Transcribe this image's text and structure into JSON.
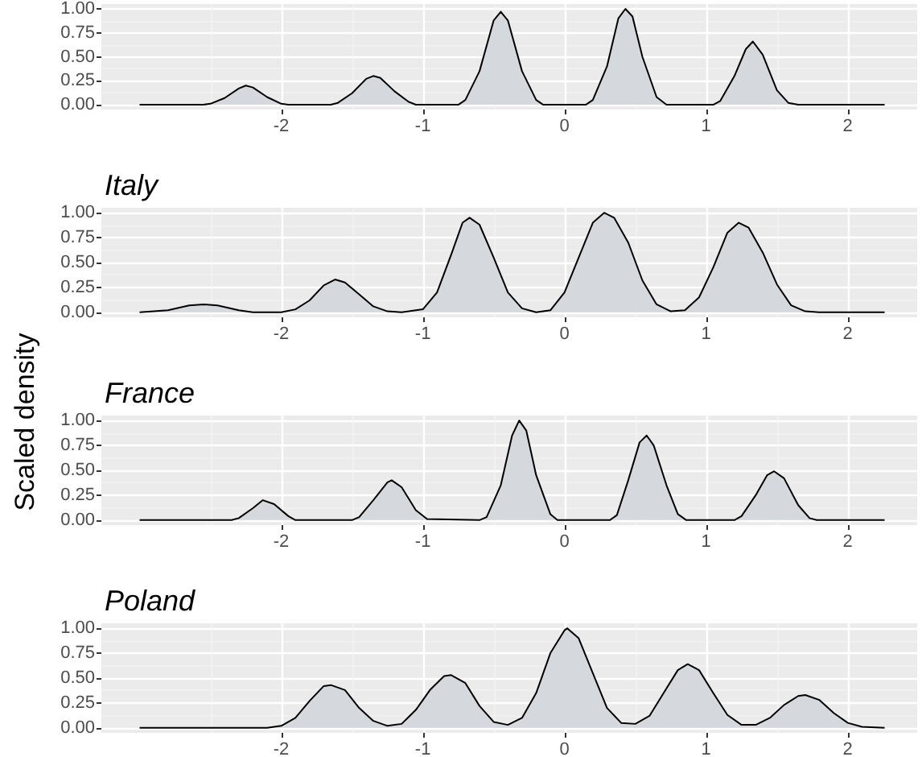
{
  "chart_data": [
    {
      "type": "area",
      "x": [
        -3.0,
        -2.55,
        -2.5,
        -2.4,
        -2.3,
        -2.25,
        -2.2,
        -2.1,
        -2.0,
        -1.95,
        -1.65,
        -1.6,
        -1.5,
        -1.4,
        -1.35,
        -1.3,
        -1.2,
        -1.1,
        -1.05,
        -0.75,
        -0.7,
        -0.6,
        -0.5,
        -0.45,
        -0.4,
        -0.3,
        -0.2,
        -0.15,
        0.15,
        0.2,
        0.3,
        0.38,
        0.43,
        0.48,
        0.55,
        0.65,
        0.72,
        1.05,
        1.1,
        1.2,
        1.28,
        1.33,
        1.4,
        1.5,
        1.58,
        1.65,
        2.26
      ],
      "series": [
        {
          "color": "#d5d8dc",
          "values": [
            0,
            0,
            0.01,
            0.07,
            0.17,
            0.2,
            0.18,
            0.08,
            0.01,
            0,
            0,
            0.02,
            0.12,
            0.27,
            0.3,
            0.28,
            0.14,
            0.03,
            0,
            0,
            0.05,
            0.35,
            0.88,
            0.97,
            0.88,
            0.35,
            0.05,
            0,
            0,
            0.05,
            0.4,
            0.9,
            1.0,
            0.92,
            0.5,
            0.08,
            0,
            0,
            0.04,
            0.3,
            0.58,
            0.66,
            0.52,
            0.15,
            0.02,
            0,
            0
          ]
        }
      ],
      "xlim": [
        -3.27,
        2.49
      ],
      "xticks": [
        -2,
        -1,
        0,
        1,
        2
      ],
      "ylim": [
        -0.05,
        1.05
      ],
      "yticks": [
        {
          "value": 0,
          "label": "0.00"
        },
        {
          "value": 0.25,
          "label": "0.25"
        },
        {
          "value": 0.5,
          "label": "0.50"
        },
        {
          "value": 0.75,
          "label": "0.75"
        },
        {
          "value": 1,
          "label": "1.00"
        }
      ],
      "grid": true,
      "marker": "none",
      "line_style": "solid"
    },
    {
      "type": "area",
      "title": "Italy",
      "x": [
        -3.0,
        -2.8,
        -2.65,
        -2.55,
        -2.45,
        -2.3,
        -2.2,
        -2.0,
        -1.9,
        -1.8,
        -1.7,
        -1.62,
        -1.55,
        -1.45,
        -1.35,
        -1.25,
        -1.15,
        -1.0,
        -0.9,
        -0.8,
        -0.72,
        -0.67,
        -0.6,
        -0.5,
        -0.4,
        -0.3,
        -0.2,
        -0.1,
        0,
        0.1,
        0.2,
        0.28,
        0.35,
        0.45,
        0.55,
        0.65,
        0.75,
        0.85,
        0.95,
        1.05,
        1.15,
        1.23,
        1.3,
        1.4,
        1.5,
        1.6,
        1.7,
        1.8,
        2.26
      ],
      "series": [
        {
          "color": "#d5d8dc",
          "values": [
            0,
            0.02,
            0.07,
            0.08,
            0.07,
            0.02,
            0,
            0,
            0.03,
            0.12,
            0.27,
            0.33,
            0.3,
            0.18,
            0.06,
            0.01,
            0,
            0.03,
            0.2,
            0.58,
            0.9,
            0.95,
            0.88,
            0.55,
            0.2,
            0.04,
            0,
            0.02,
            0.2,
            0.55,
            0.9,
            1.0,
            0.95,
            0.7,
            0.32,
            0.08,
            0.01,
            0.02,
            0.15,
            0.45,
            0.8,
            0.9,
            0.85,
            0.6,
            0.28,
            0.07,
            0.01,
            0,
            0
          ]
        }
      ],
      "xlim": [
        -3.27,
        2.49
      ],
      "xticks": [
        -2,
        -1,
        0,
        1,
        2
      ],
      "ylim": [
        -0.05,
        1.05
      ],
      "yticks": [
        {
          "value": 0,
          "label": "0.00"
        },
        {
          "value": 0.25,
          "label": "0.25"
        },
        {
          "value": 0.5,
          "label": "0.50"
        },
        {
          "value": 0.75,
          "label": "0.75"
        },
        {
          "value": 1,
          "label": "1.00"
        }
      ],
      "grid": true,
      "marker": "none",
      "line_style": "solid"
    },
    {
      "type": "area",
      "title": "France",
      "ylabel": "Scaled density",
      "x": [
        -3.0,
        -2.35,
        -2.3,
        -2.2,
        -2.13,
        -2.05,
        -1.95,
        -1.9,
        -1.5,
        -1.45,
        -1.35,
        -1.25,
        -1.22,
        -1.15,
        -1.05,
        -0.97,
        -0.6,
        -0.55,
        -0.45,
        -0.37,
        -0.32,
        -0.27,
        -0.2,
        -0.1,
        -0.05,
        0.32,
        0.37,
        0.45,
        0.53,
        0.58,
        0.63,
        0.72,
        0.8,
        0.86,
        1.2,
        1.25,
        1.35,
        1.43,
        1.48,
        1.55,
        1.65,
        1.73,
        1.78,
        2.26
      ],
      "series": [
        {
          "color": "#d5d8dc",
          "values": [
            0,
            0,
            0.02,
            0.12,
            0.2,
            0.16,
            0.04,
            0,
            0,
            0.03,
            0.2,
            0.38,
            0.4,
            0.33,
            0.1,
            0.01,
            0,
            0.03,
            0.35,
            0.85,
            1.0,
            0.9,
            0.45,
            0.06,
            0,
            0,
            0.05,
            0.4,
            0.78,
            0.85,
            0.75,
            0.35,
            0.06,
            0,
            0,
            0.04,
            0.25,
            0.45,
            0.49,
            0.42,
            0.15,
            0.02,
            0,
            0
          ]
        }
      ],
      "xlim": [
        -3.27,
        2.49
      ],
      "xticks": [
        -2,
        -1,
        0,
        1,
        2
      ],
      "ylim": [
        -0.05,
        1.05
      ],
      "yticks": [
        {
          "value": 0,
          "label": "0.00"
        },
        {
          "value": 0.25,
          "label": "0.25"
        },
        {
          "value": 0.5,
          "label": "0.50"
        },
        {
          "value": 0.75,
          "label": "0.75"
        },
        {
          "value": 1,
          "label": "1.00"
        }
      ],
      "grid": true,
      "marker": "none",
      "line_style": "solid"
    },
    {
      "type": "area",
      "title": "Poland",
      "x": [
        -3.0,
        -2.1,
        -2.0,
        -1.9,
        -1.8,
        -1.7,
        -1.65,
        -1.55,
        -1.45,
        -1.35,
        -1.25,
        -1.15,
        -1.05,
        -0.95,
        -0.85,
        -0.8,
        -0.7,
        -0.6,
        -0.5,
        -0.4,
        -0.3,
        -0.2,
        -0.1,
        0,
        0.02,
        0.1,
        0.2,
        0.3,
        0.4,
        0.5,
        0.6,
        0.7,
        0.8,
        0.87,
        0.95,
        1.05,
        1.15,
        1.25,
        1.35,
        1.45,
        1.55,
        1.65,
        1.7,
        1.8,
        1.9,
        2.0,
        2.1,
        2.26
      ],
      "series": [
        {
          "color": "#d5d8dc",
          "values": [
            0,
            0,
            0.02,
            0.1,
            0.27,
            0.42,
            0.43,
            0.38,
            0.2,
            0.07,
            0.02,
            0.04,
            0.18,
            0.38,
            0.52,
            0.53,
            0.45,
            0.22,
            0.06,
            0.03,
            0.1,
            0.35,
            0.75,
            0.98,
            1.0,
            0.9,
            0.55,
            0.2,
            0.05,
            0.04,
            0.12,
            0.35,
            0.58,
            0.64,
            0.58,
            0.35,
            0.13,
            0.03,
            0.03,
            0.1,
            0.23,
            0.32,
            0.33,
            0.28,
            0.15,
            0.05,
            0.01,
            0
          ]
        }
      ],
      "xlim": [
        -3.27,
        2.49
      ],
      "xticks": [
        -2,
        -1,
        0,
        1,
        2
      ],
      "ylim": [
        -0.05,
        1.05
      ],
      "yticks": [
        {
          "value": 0,
          "label": "0.00"
        },
        {
          "value": 0.25,
          "label": "0.25"
        },
        {
          "value": 0.5,
          "label": "0.50"
        },
        {
          "value": 0.75,
          "label": "0.75"
        },
        {
          "value": 1,
          "label": "1.00"
        }
      ],
      "grid": true,
      "marker": "none",
      "line_style": "solid"
    }
  ]
}
